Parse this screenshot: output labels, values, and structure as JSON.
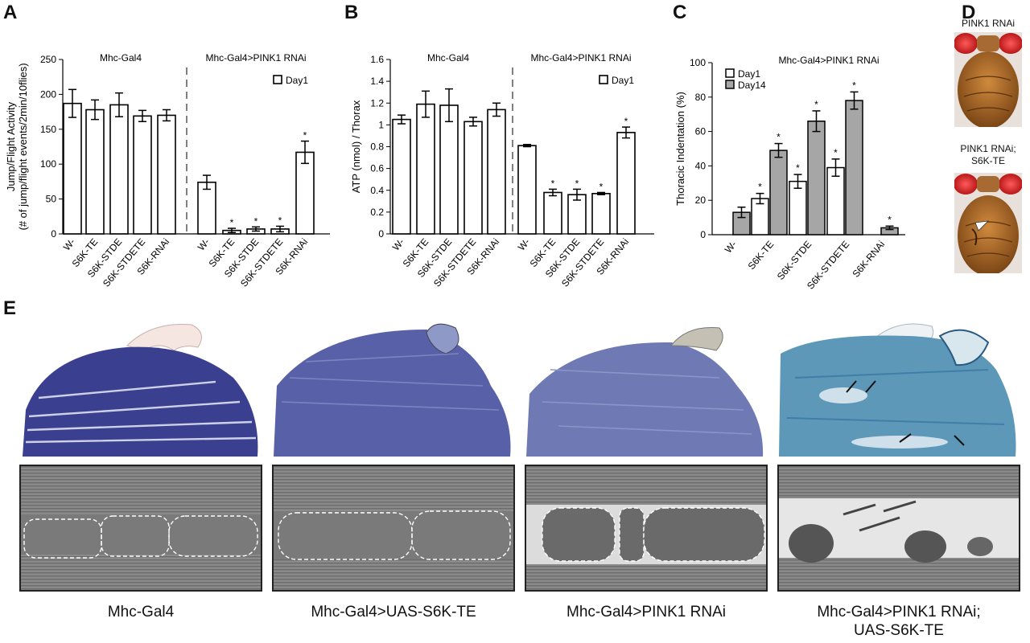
{
  "panels": {
    "a_label": "A",
    "b_label": "B",
    "c_label": "C",
    "d_label": "D",
    "e_label": "E"
  },
  "chart_data": [
    {
      "type": "bar",
      "panel": "A",
      "ylabel": "Jump/Flight Activity",
      "ylabel2": "(# of jump/flight events/2min/10flies)",
      "ylim": [
        0,
        250
      ],
      "yticks": [
        0,
        50,
        100,
        150,
        200,
        250
      ],
      "group_labels": [
        "Mhc-Gal4",
        "Mhc-Gal4>PINK1 RNAi"
      ],
      "legend": [
        "Day1"
      ],
      "categories": [
        "W-",
        "S6K-TE",
        "S6K-STDE",
        "S6K-STDETE",
        "S6K-RNAi",
        "W-",
        "S6K-TE",
        "S6K-STDE",
        "S6K-STDETE",
        "S6K-RNAi"
      ],
      "values": [
        187,
        178,
        185,
        169,
        170,
        74,
        5,
        7,
        7,
        117
      ],
      "errors": [
        20,
        14,
        17,
        8,
        8,
        10,
        3,
        3,
        4,
        16
      ],
      "significant": [
        false,
        false,
        false,
        false,
        false,
        false,
        true,
        true,
        true,
        true
      ],
      "significance_mark": "*"
    },
    {
      "type": "bar",
      "panel": "B",
      "ylabel": "ATP (nmol) / Thorax",
      "ylim": [
        0,
        1.6
      ],
      "yticks": [
        "0",
        "0.2",
        "0.4",
        "0.6",
        "0.8",
        "1",
        "1.2",
        "1.4",
        "1.6"
      ],
      "group_labels": [
        "Mhc-Gal4",
        "Mhc-Gal4>PINK1 RNAi"
      ],
      "legend": [
        "Day1"
      ],
      "categories": [
        "W-",
        "S6K-TE",
        "S6K-STDE",
        "S6K-STDETE",
        "S6K-RNAi",
        "W-",
        "S6K-TE",
        "S6K-STDE",
        "S6K-STDETE",
        "S6K-RNAi"
      ],
      "values": [
        1.05,
        1.19,
        1.18,
        1.03,
        1.14,
        0.81,
        0.38,
        0.36,
        0.37,
        0.93
      ],
      "errors": [
        0.04,
        0.12,
        0.15,
        0.04,
        0.06,
        0.01,
        0.03,
        0.05,
        0.01,
        0.05
      ],
      "significant": [
        false,
        false,
        false,
        false,
        false,
        false,
        true,
        true,
        true,
        true
      ],
      "significance_mark": "*"
    },
    {
      "type": "bar",
      "panel": "C",
      "ylabel": "Thoracic Indentation (%)",
      "ylim": [
        0,
        100
      ],
      "yticks": [
        0,
        20,
        40,
        60,
        80,
        100
      ],
      "group_labels": [
        "Mhc-Gal4>PINK1 RNAi"
      ],
      "categories": [
        "W-",
        "S6K-TE",
        "S6K-STDE",
        "S6K-STDETE",
        "S6K-RNAi"
      ],
      "series": [
        {
          "name": "Day1",
          "values": [
            0,
            21,
            31,
            39,
            0
          ],
          "errors": [
            0,
            3,
            4,
            5,
            0
          ],
          "significant": [
            false,
            true,
            true,
            true,
            false
          ]
        },
        {
          "name": "Day14",
          "values": [
            13,
            49,
            66,
            78,
            4
          ],
          "errors": [
            3,
            4,
            6,
            5,
            1
          ],
          "significant": [
            false,
            true,
            true,
            true,
            true
          ]
        }
      ],
      "significance_mark": "*"
    }
  ],
  "photos_d": {
    "label_top": "PINK1 RNAi",
    "label_bottom_line1": "PINK1 RNAi;",
    "label_bottom_line2": "S6K-TE"
  },
  "captions_e": [
    {
      "line1": "Mhc-Gal4",
      "line2": ""
    },
    {
      "line1": "Mhc-Gal4>UAS-S6K-TE",
      "line2": ""
    },
    {
      "line1": "Mhc-Gal4>PINK1 RNAi",
      "line2": ""
    },
    {
      "line1": "Mhc-Gal4>PINK1 RNAi;",
      "line2": "UAS-S6K-TE"
    }
  ],
  "colors": {
    "bar_day1": "#ffffff",
    "bar_day14": "#a6a6a6",
    "axis": "#000000",
    "histology_1": "#3a3f8f",
    "histology_2": "#5860a8",
    "histology_3": "#6f79b4",
    "histology_4": "#5e98b8",
    "em_gray": "#8a8a8a"
  }
}
